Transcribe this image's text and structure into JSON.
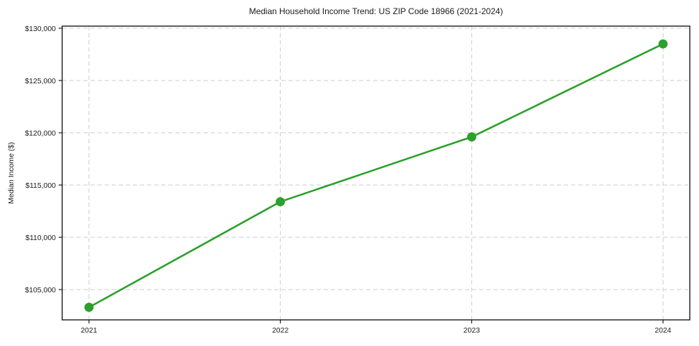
{
  "page": {
    "title": "Median Household Income Trend: US ZIP Code 18966 (2021-2024)"
  },
  "chart_data": {
    "type": "line",
    "title": "Median Household Income Trend: US ZIP Code 18966 (2021-2024)",
    "xlabel": "",
    "ylabel": "Median Income ($)",
    "x": [
      2021,
      2022,
      2023,
      2024
    ],
    "x_tick_labels": [
      "2021",
      "2022",
      "2023",
      "2024"
    ],
    "series": [
      {
        "name": "Median Household Income",
        "values": [
          103300,
          113400,
          119600,
          128500
        ],
        "color": "#2ca02c",
        "marker": "circle"
      }
    ],
    "y_ticks": [
      105000,
      110000,
      115000,
      120000,
      125000,
      130000
    ],
    "y_tick_labels": [
      "$105,000",
      "$110,000",
      "$115,000",
      "$120,000",
      "$125,000",
      "$130,000"
    ],
    "xlim": [
      2020.86,
      2024.14
    ],
    "ylim": [
      102100,
      130200
    ],
    "grid": true,
    "grid_style": "dashed",
    "grid_color": "#cccccc",
    "axis_color": "#1a1a1a",
    "tick_label_color": "#1a1a1a",
    "background_color": "#ffffff",
    "legend": "none"
  }
}
